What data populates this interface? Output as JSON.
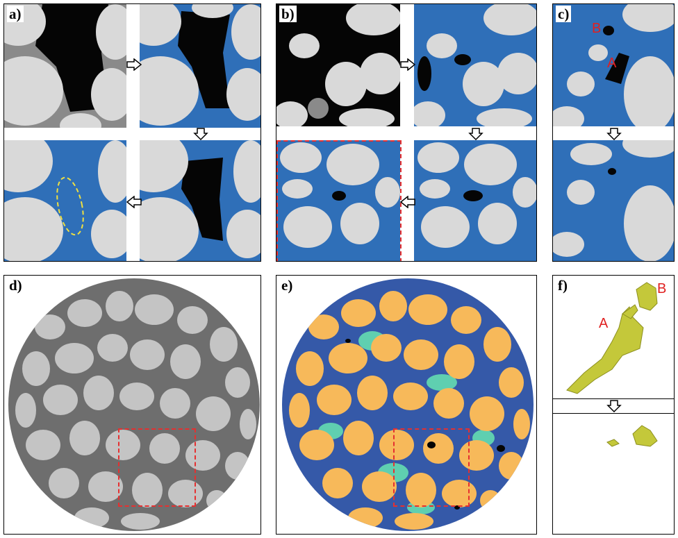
{
  "panels": {
    "a": {
      "label": "a)"
    },
    "b": {
      "label": "b)"
    },
    "c": {
      "label": "c)",
      "marker_a": "A",
      "marker_b": "B"
    },
    "d": {
      "label": "d)"
    },
    "e": {
      "label": "e)"
    },
    "f": {
      "label": "f)",
      "marker_a": "A",
      "marker_b": "B"
    }
  },
  "colors": {
    "grain": "#d9d9d9",
    "pore_dark": "#050505",
    "matrix_gray": "#8a8a8a",
    "water_blue": "#2f6fb8",
    "segment_grain": "#f7b95a",
    "segment_blue": "#3559a8",
    "segment_teal": "#5fcfb0",
    "blob_yellow": "#c4c83a",
    "dash_red": "#e53030"
  }
}
